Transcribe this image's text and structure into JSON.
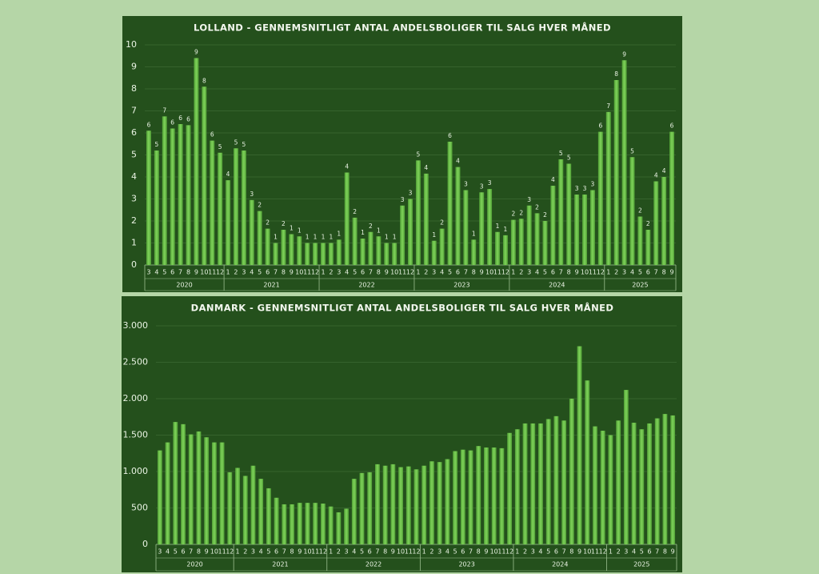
{
  "chart_data": [
    {
      "type": "bar",
      "title": "LOLLAND  - GENNEMSNITLIGT ANTAL ANDELSBOLIGER TIL SALG HVER MÅNED",
      "categories": [
        "3",
        "4",
        "5",
        "6",
        "7",
        "8",
        "9",
        "10",
        "11",
        "12",
        "1",
        "2",
        "3",
        "4",
        "5",
        "6",
        "7",
        "8",
        "9",
        "10",
        "11",
        "12",
        "1",
        "2",
        "3",
        "4",
        "5",
        "6",
        "7",
        "8",
        "9",
        "10",
        "11",
        "12",
        "1",
        "2",
        "3",
        "4",
        "5",
        "6",
        "7",
        "8",
        "9",
        "10",
        "11",
        "12",
        "1",
        "2",
        "3",
        "4",
        "5",
        "6",
        "7",
        "8",
        "9",
        "10",
        "11",
        "12",
        "1",
        "2",
        "3",
        "4",
        "5",
        "6",
        "7",
        "8",
        "9"
      ],
      "x_groups": [
        "2020",
        "2021",
        "2022",
        "2023",
        "2024",
        "2025"
      ],
      "values": [
        6.1,
        5.2,
        6.75,
        6.2,
        6.4,
        6.35,
        9.4,
        8.1,
        5.65,
        5.1,
        3.85,
        5.3,
        5.2,
        2.95,
        2.45,
        1.65,
        1.0,
        1.6,
        1.4,
        1.3,
        1.0,
        1.0,
        1.0,
        1.0,
        1.15,
        4.2,
        2.15,
        1.2,
        1.5,
        1.3,
        1.0,
        1.0,
        2.7,
        3.0,
        4.75,
        4.15,
        1.1,
        1.65,
        5.6,
        4.45,
        3.4,
        1.15,
        3.3,
        3.45,
        1.5,
        1.35,
        2.05,
        2.1,
        2.7,
        2.35,
        2.0,
        3.6,
        4.8,
        4.6,
        3.2,
        3.2,
        3.4,
        6.05,
        6.95,
        8.4,
        9.3,
        4.9,
        2.2,
        1.6,
        3.8,
        4.0,
        6.05
      ],
      "value_labels": [
        "6",
        "5",
        "7",
        "6",
        "6",
        "6",
        "9",
        "8",
        "6",
        "5",
        "4",
        "5",
        "5",
        "3",
        "2",
        "2",
        "1",
        "2",
        "1",
        "1",
        "1",
        "1",
        "1",
        "1",
        "1",
        "4",
        "2",
        "1",
        "2",
        "1",
        "1",
        "1",
        "3",
        "3",
        "5",
        "4",
        "1",
        "2",
        "6",
        "4",
        "3",
        "1",
        "3",
        "3",
        "1",
        "1",
        "2",
        "2",
        "3",
        "2",
        "2",
        "4",
        "5",
        "5",
        "3",
        "3",
        "3",
        "6",
        "7",
        "8",
        "9",
        "5",
        "2",
        "2",
        "4",
        "4",
        "6"
      ],
      "color": "#6cc04a",
      "ylim": [
        0,
        10
      ],
      "yticks": [
        0,
        1,
        2,
        3,
        4,
        5,
        6,
        7,
        8,
        9,
        10
      ],
      "grid": true
    },
    {
      "type": "bar",
      "title": "DANMARK - GENNEMSNITLIGT ANTAL ANDELSBOLIGER TIL SALG HVER MÅNED",
      "categories": [
        "3",
        "4",
        "5",
        "6",
        "7",
        "8",
        "9",
        "10",
        "11",
        "12",
        "1",
        "2",
        "3",
        "4",
        "5",
        "6",
        "7",
        "8",
        "9",
        "10",
        "11",
        "12",
        "1",
        "2",
        "3",
        "4",
        "5",
        "6",
        "7",
        "8",
        "9",
        "10",
        "11",
        "12",
        "1",
        "2",
        "3",
        "4",
        "5",
        "6",
        "7",
        "8",
        "9",
        "10",
        "11",
        "12",
        "1",
        "2",
        "3",
        "4",
        "5",
        "6",
        "7",
        "8",
        "9",
        "10",
        "11",
        "12",
        "1",
        "2",
        "3",
        "4",
        "5",
        "6",
        "7",
        "8",
        "9"
      ],
      "x_groups": [
        "2020",
        "2021",
        "2022",
        "2023",
        "2024",
        "2025"
      ],
      "values": [
        1290,
        1400,
        1680,
        1650,
        1510,
        1550,
        1470,
        1400,
        1400,
        990,
        1050,
        940,
        1080,
        900,
        770,
        640,
        550,
        550,
        570,
        570,
        570,
        560,
        520,
        440,
        490,
        900,
        980,
        990,
        1100,
        1080,
        1100,
        1060,
        1070,
        1030,
        1080,
        1140,
        1130,
        1170,
        1280,
        1300,
        1290,
        1350,
        1330,
        1330,
        1320,
        1530,
        1580,
        1660,
        1660,
        1660,
        1720,
        1760,
        1700,
        2000,
        2720,
        2250,
        1620,
        1560,
        1500,
        1700,
        2120,
        1670,
        1580,
        1660,
        1730,
        1790,
        1770
      ],
      "color": "#6cc04a",
      "ylim": [
        0,
        3000
      ],
      "yticks": [
        0,
        500,
        {
          "value": 1000,
          "label": "1.000"
        },
        {
          "value": 1500,
          "label": "1.500"
        },
        {
          "value": 2000,
          "label": "2.000"
        },
        {
          "value": 2500,
          "label": "2.500"
        },
        {
          "value": 3000,
          "label": "3.000"
        }
      ],
      "grid": true
    }
  ]
}
